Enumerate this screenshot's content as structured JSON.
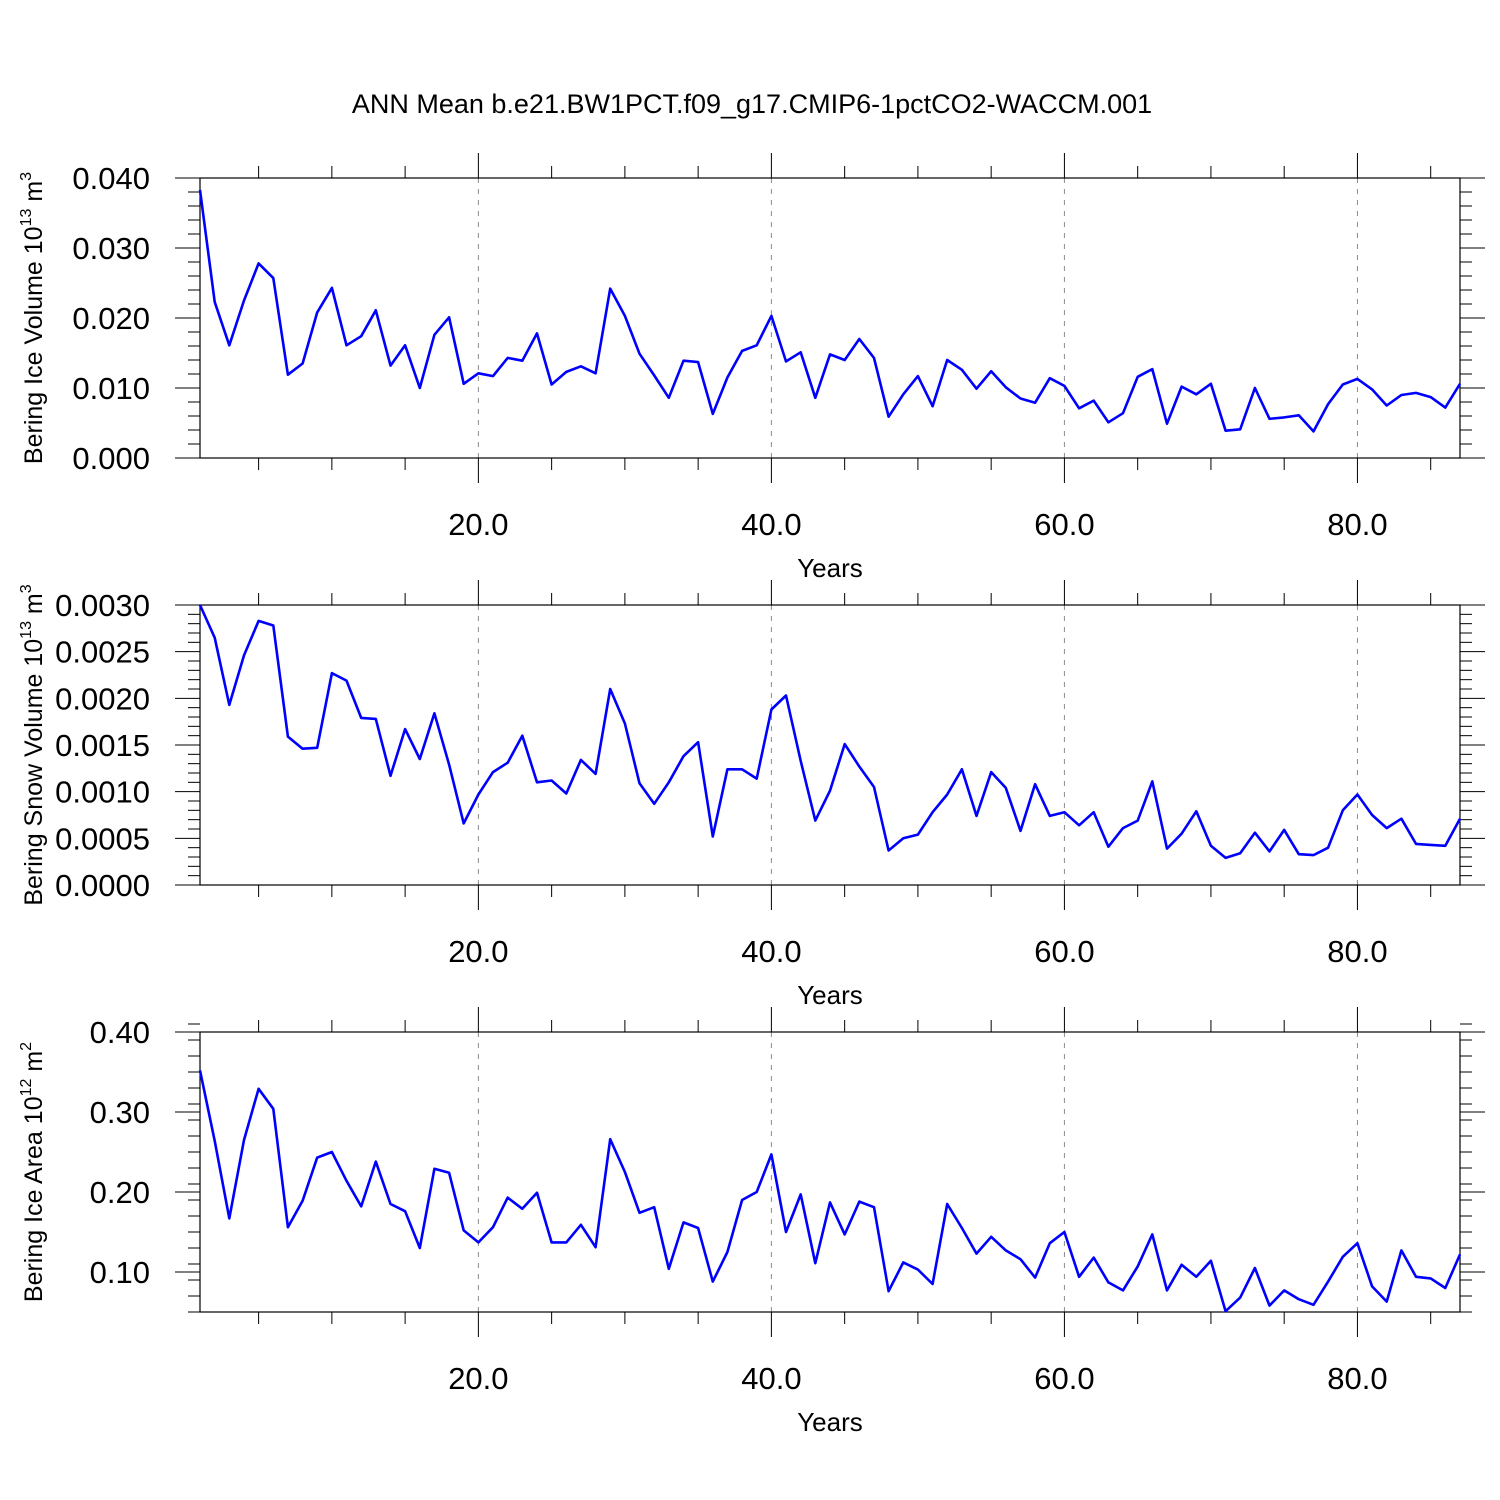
{
  "figure": {
    "title": "ANN Mean b.e21.BW1PCT.f09_g17.CMIP6-1pctCO2-WACCM.001",
    "line_color": "#0000ff"
  },
  "chart_data": [
    {
      "type": "line",
      "xlabel": "Years",
      "ylabel": {
        "text": "Bering Ice Volume 10",
        "exp": "13",
        "unit": " m",
        "unit_exp": "3"
      },
      "xlim": [
        1,
        87
      ],
      "ylim": [
        0,
        0.04
      ],
      "xticks": [
        20,
        40,
        60,
        80
      ],
      "xtick_labels": [
        "20.0",
        "40.0",
        "60.0",
        "80.0"
      ],
      "yticks": [
        0,
        0.01,
        0.02,
        0.03,
        0.04
      ],
      "ytick_labels": [
        "0.000",
        "0.010",
        "0.020",
        "0.030",
        "0.040"
      ],
      "grid": "x-dashed",
      "x": [
        1,
        2,
        3,
        4,
        5,
        6,
        7,
        8,
        9,
        10,
        11,
        12,
        13,
        14,
        15,
        16,
        17,
        18,
        19,
        20,
        21,
        22,
        23,
        24,
        25,
        26,
        27,
        28,
        29,
        30,
        31,
        32,
        33,
        34,
        35,
        36,
        37,
        38,
        39,
        40,
        41,
        42,
        43,
        44,
        45,
        46,
        47,
        48,
        49,
        50,
        51,
        52,
        53,
        54,
        55,
        56,
        57,
        58,
        59,
        60,
        61,
        62,
        63,
        64,
        65,
        66,
        67,
        68,
        69,
        70,
        71,
        72,
        73,
        74,
        75,
        76,
        77,
        78,
        79,
        80,
        81,
        82,
        83,
        84,
        85,
        86,
        87
      ],
      "values": [
        0.0383,
        0.0223,
        0.0161,
        0.0225,
        0.0278,
        0.0257,
        0.0119,
        0.0135,
        0.0208,
        0.0243,
        0.0161,
        0.0174,
        0.0211,
        0.0132,
        0.0161,
        0.01,
        0.0176,
        0.0201,
        0.0106,
        0.0121,
        0.0117,
        0.0143,
        0.0139,
        0.0178,
        0.0105,
        0.0123,
        0.0131,
        0.0121,
        0.0242,
        0.0203,
        0.0149,
        0.0118,
        0.0086,
        0.0139,
        0.0137,
        0.0063,
        0.0115,
        0.0153,
        0.0161,
        0.0203,
        0.0138,
        0.0151,
        0.0086,
        0.0148,
        0.014,
        0.017,
        0.0143,
        0.0059,
        0.0091,
        0.0117,
        0.0074,
        0.014,
        0.0126,
        0.0099,
        0.0124,
        0.0101,
        0.0085,
        0.0079,
        0.0114,
        0.0103,
        0.0071,
        0.0082,
        0.0051,
        0.0064,
        0.0116,
        0.0127,
        0.0049,
        0.0102,
        0.0091,
        0.0106,
        0.0039,
        0.0041,
        0.01,
        0.0056,
        0.0058,
        0.0061,
        0.0038,
        0.0077,
        0.0105,
        0.0113,
        0.0098,
        0.0075,
        0.009,
        0.0093,
        0.0087,
        0.0072,
        0.0106
      ]
    },
    {
      "type": "line",
      "xlabel": "Years",
      "ylabel": {
        "text": "Bering Snow Volume 10",
        "exp": "13",
        "unit": " m",
        "unit_exp": "3"
      },
      "xlim": [
        1,
        87
      ],
      "ylim": [
        0,
        0.003
      ],
      "xticks": [
        20,
        40,
        60,
        80
      ],
      "xtick_labels": [
        "20.0",
        "40.0",
        "60.0",
        "80.0"
      ],
      "yticks": [
        0,
        0.0005,
        0.001,
        0.0015,
        0.002,
        0.0025,
        0.003
      ],
      "ytick_labels": [
        "0.0000",
        "0.0005",
        "0.0010",
        "0.0015",
        "0.0020",
        "0.0025",
        "0.0030"
      ],
      "grid": "x-dashed",
      "x": [
        1,
        2,
        3,
        4,
        5,
        6,
        7,
        8,
        9,
        10,
        11,
        12,
        13,
        14,
        15,
        16,
        17,
        18,
        19,
        20,
        21,
        22,
        23,
        24,
        25,
        26,
        27,
        28,
        29,
        30,
        31,
        32,
        33,
        34,
        35,
        36,
        37,
        38,
        39,
        40,
        41,
        42,
        43,
        44,
        45,
        46,
        47,
        48,
        49,
        50,
        51,
        52,
        53,
        54,
        55,
        56,
        57,
        58,
        59,
        60,
        61,
        62,
        63,
        64,
        65,
        66,
        67,
        68,
        69,
        70,
        71,
        72,
        73,
        74,
        75,
        76,
        77,
        78,
        79,
        80,
        81,
        82,
        83,
        84,
        85,
        86,
        87
      ],
      "values": [
        0.003,
        0.00265,
        0.00193,
        0.00246,
        0.00283,
        0.00278,
        0.00159,
        0.00146,
        0.00147,
        0.00227,
        0.00219,
        0.00179,
        0.00178,
        0.00117,
        0.00167,
        0.00135,
        0.00184,
        0.00129,
        0.00066,
        0.00097,
        0.00121,
        0.00131,
        0.0016,
        0.0011,
        0.00112,
        0.00098,
        0.00134,
        0.00119,
        0.0021,
        0.00173,
        0.00109,
        0.00087,
        0.0011,
        0.00138,
        0.00153,
        0.00052,
        0.00124,
        0.00124,
        0.00114,
        0.00188,
        0.00203,
        0.00133,
        0.00069,
        0.00101,
        0.00151,
        0.00127,
        0.00105,
        0.00037,
        0.0005,
        0.00054,
        0.00078,
        0.00097,
        0.00124,
        0.00074,
        0.00121,
        0.00104,
        0.00058,
        0.00108,
        0.00074,
        0.00078,
        0.00064,
        0.00078,
        0.00041,
        0.00061,
        0.00069,
        0.00111,
        0.00039,
        0.00055,
        0.00079,
        0.00042,
        0.00029,
        0.00034,
        0.00056,
        0.00036,
        0.00059,
        0.00033,
        0.00032,
        0.0004,
        0.0008,
        0.00097,
        0.00075,
        0.00061,
        0.00071,
        0.00044,
        0.00043,
        0.00042,
        0.00071
      ]
    },
    {
      "type": "line",
      "xlabel": "Years",
      "ylabel": {
        "text": "Bering Ice Area 10",
        "exp": "12",
        "unit": " m",
        "unit_exp": "2"
      },
      "xlim": [
        1,
        87
      ],
      "ylim": [
        0.05,
        0.4
      ],
      "xticks": [
        20,
        40,
        60,
        80
      ],
      "xtick_labels": [
        "20.0",
        "40.0",
        "60.0",
        "80.0"
      ],
      "yticks": [
        0.1,
        0.2,
        0.3,
        0.4
      ],
      "ytick_labels": [
        "0.10",
        "0.20",
        "0.30",
        "0.40"
      ],
      "grid": "x-dashed",
      "x": [
        1,
        2,
        3,
        4,
        5,
        6,
        7,
        8,
        9,
        10,
        11,
        12,
        13,
        14,
        15,
        16,
        17,
        18,
        19,
        20,
        21,
        22,
        23,
        24,
        25,
        26,
        27,
        28,
        29,
        30,
        31,
        32,
        33,
        34,
        35,
        36,
        37,
        38,
        39,
        40,
        41,
        42,
        43,
        44,
        45,
        46,
        47,
        48,
        49,
        50,
        51,
        52,
        53,
        54,
        55,
        56,
        57,
        58,
        59,
        60,
        61,
        62,
        63,
        64,
        65,
        66,
        67,
        68,
        69,
        70,
        71,
        72,
        73,
        74,
        75,
        76,
        77,
        78,
        79,
        80,
        81,
        82,
        83,
        84,
        85,
        86,
        87
      ],
      "values": [
        0.352,
        0.264,
        0.167,
        0.265,
        0.329,
        0.304,
        0.156,
        0.189,
        0.243,
        0.25,
        0.214,
        0.182,
        0.238,
        0.185,
        0.176,
        0.13,
        0.229,
        0.224,
        0.152,
        0.137,
        0.156,
        0.193,
        0.179,
        0.199,
        0.137,
        0.137,
        0.159,
        0.131,
        0.266,
        0.225,
        0.174,
        0.181,
        0.104,
        0.162,
        0.155,
        0.088,
        0.125,
        0.19,
        0.2,
        0.247,
        0.15,
        0.197,
        0.111,
        0.187,
        0.147,
        0.188,
        0.181,
        0.076,
        0.112,
        0.103,
        0.085,
        0.185,
        0.155,
        0.123,
        0.144,
        0.127,
        0.116,
        0.093,
        0.136,
        0.15,
        0.094,
        0.118,
        0.087,
        0.077,
        0.107,
        0.147,
        0.077,
        0.109,
        0.094,
        0.114,
        0.051,
        0.068,
        0.105,
        0.058,
        0.077,
        0.066,
        0.059,
        0.088,
        0.119,
        0.136,
        0.082,
        0.063,
        0.127,
        0.094,
        0.092,
        0.08,
        0.122
      ]
    }
  ]
}
